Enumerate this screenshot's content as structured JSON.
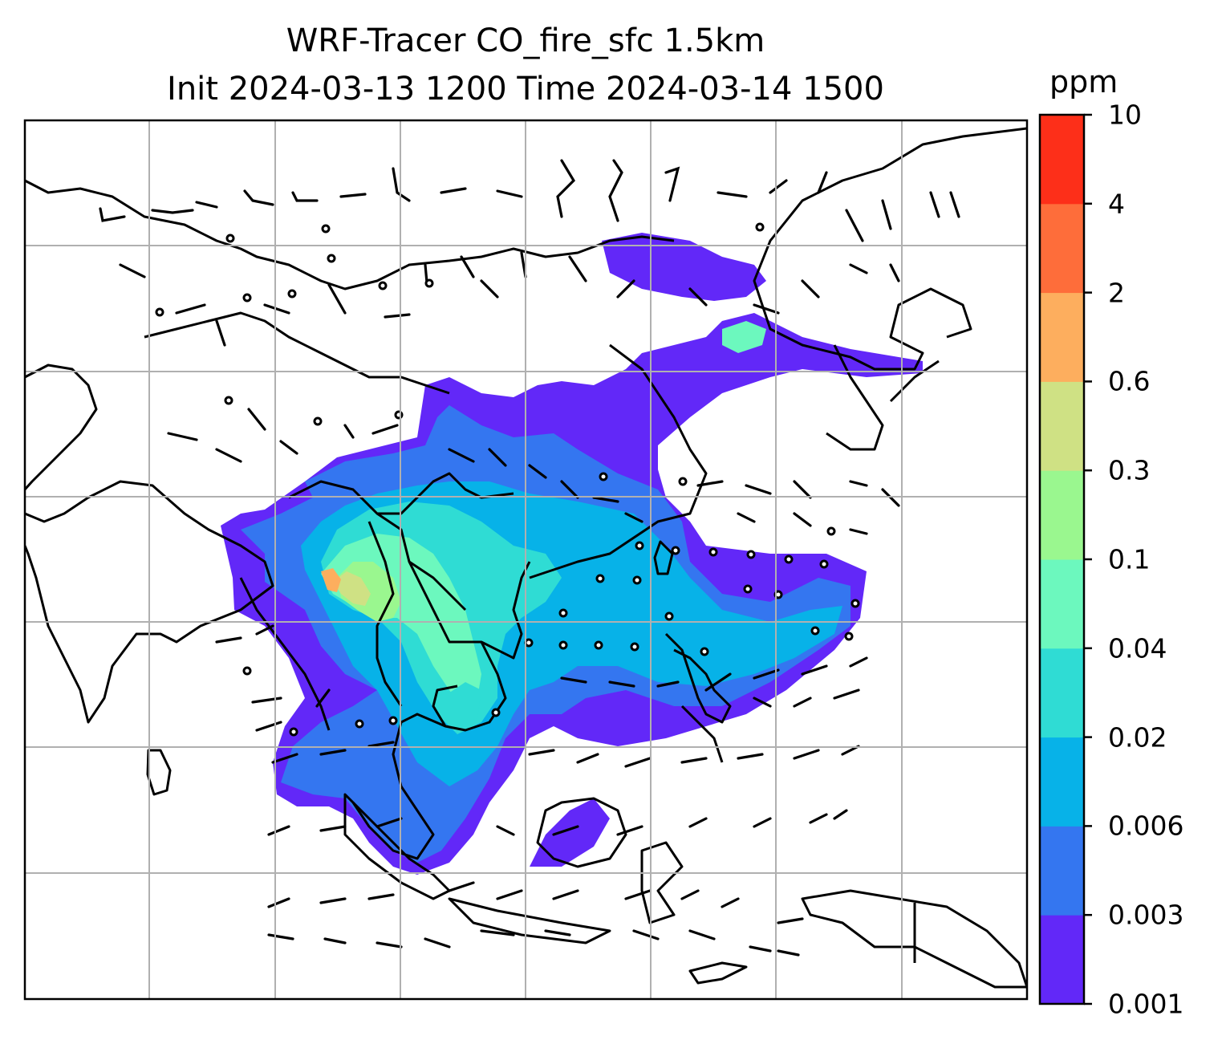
{
  "title": {
    "line1": "WRF-Tracer CO_fire_sfc 1.5km",
    "line2": "Init 2024-03-13 1200 Time 2024-03-14 1500"
  },
  "colorbar": {
    "unit": "ppm",
    "levels": [
      "0.001",
      "0.003",
      "0.006",
      "0.02",
      "0.04",
      "0.1",
      "0.3",
      "0.6",
      "2",
      "4",
      "10"
    ],
    "colors": [
      "#6228f8",
      "#3476f0",
      "#07b2e8",
      "#2fdcd4",
      "#6cf8be",
      "#9af78f",
      "#cfe184",
      "#fdae5e",
      "#fe6d3a",
      "#fd2f19"
    ]
  },
  "map": {
    "field": "CO_fire_sfc",
    "coastline_color": "#000000",
    "gridline_color": "#b0b0b0"
  }
}
